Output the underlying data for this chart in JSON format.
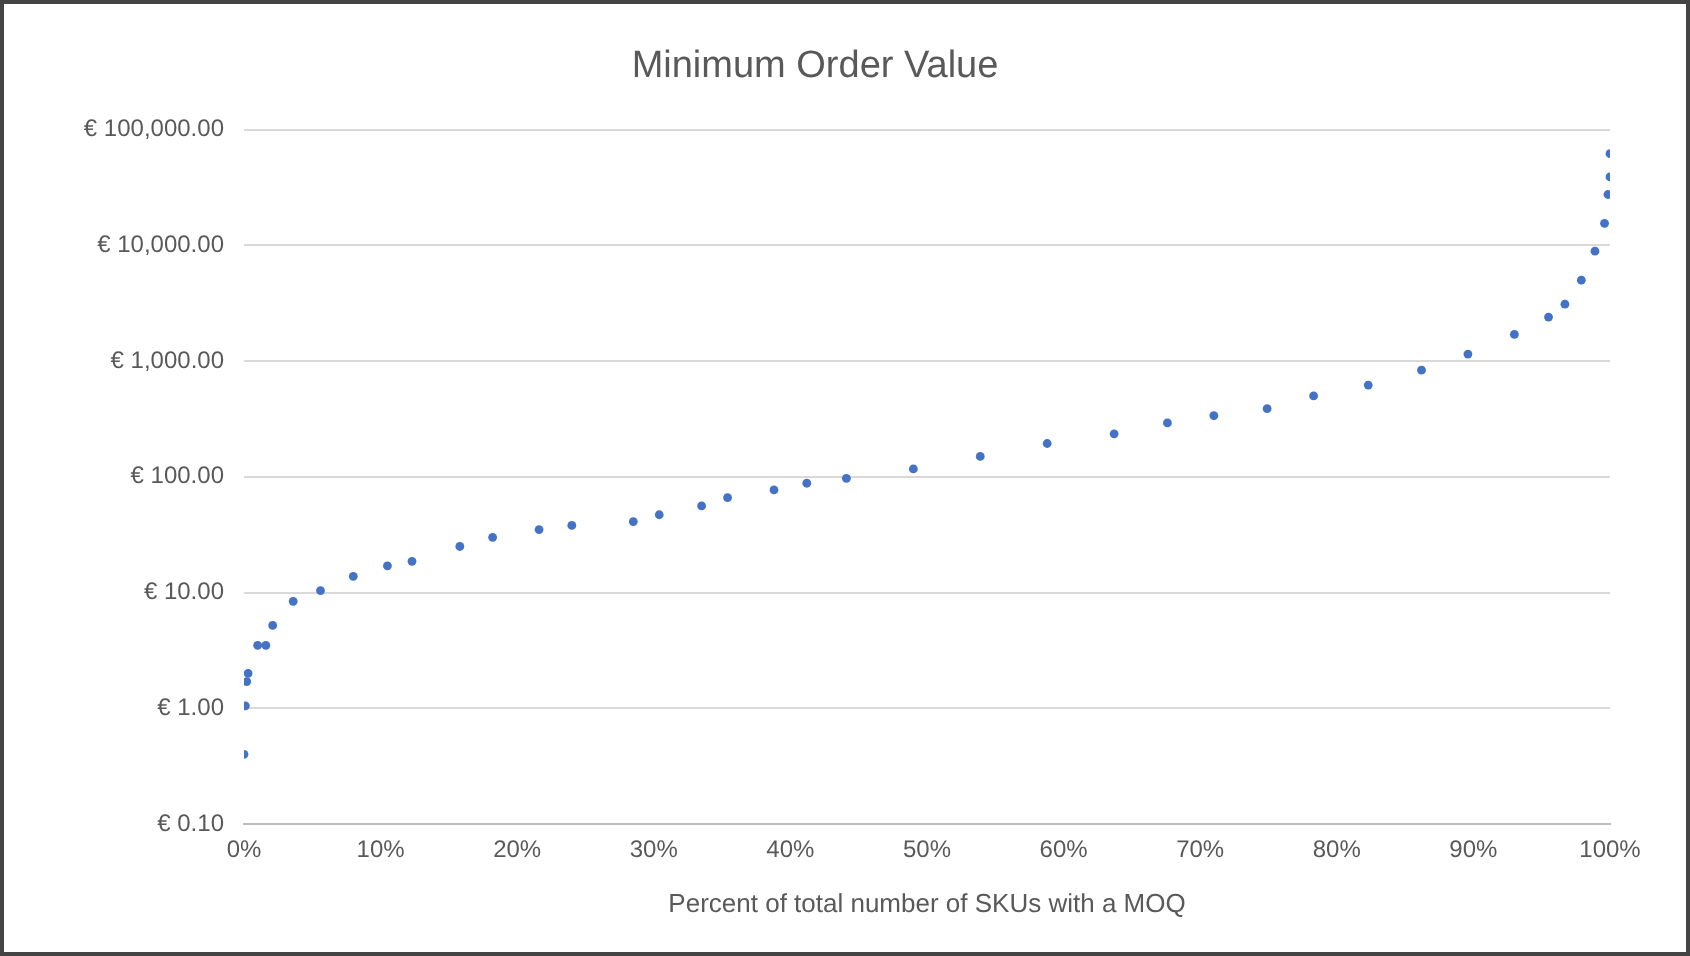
{
  "chart_data": {
    "type": "scatter",
    "title": "Minimum Order Value",
    "xlabel": "Percent of total number of SKUs with a MOQ",
    "x": [
      0,
      0.1,
      0.2,
      0.3,
      1.0,
      1.6,
      2.1,
      3.6,
      5.6,
      8.0,
      10.5,
      12.3,
      15.8,
      18.2,
      21.6,
      24,
      28.5,
      30.4,
      33.5,
      35.4,
      38.8,
      41.2,
      44.1,
      49.0,
      53.9,
      58.8,
      63.7,
      67.6,
      71.0,
      74.9,
      78.3,
      82.3,
      86.2,
      89.6,
      93.0,
      95.5,
      96.7,
      97.9,
      98.9,
      99.6,
      99.85,
      100,
      100
    ],
    "values": [
      0.4,
      1.05,
      1.7,
      2.0,
      3.5,
      3.5,
      5.2,
      8.4,
      10.4,
      13.8,
      17,
      18.6,
      25,
      30,
      35,
      38,
      41,
      47,
      56,
      66,
      77,
      88,
      97,
      117,
      150,
      194,
      235,
      292,
      337,
      388,
      500,
      620,
      835,
      1150,
      1700,
      2400,
      3100,
      5000,
      8900,
      15500,
      27500,
      39000,
      62000
    ],
    "color": "#4472c4",
    "marker": "circle",
    "log": "y",
    "grid": "y",
    "xlim": [
      0,
      100
    ],
    "xticks": [
      {
        "value": 0,
        "label": "0%"
      },
      {
        "value": 10,
        "label": "10%"
      },
      {
        "value": 20,
        "label": "20%"
      },
      {
        "value": 30,
        "label": "30%"
      },
      {
        "value": 40,
        "label": "40%"
      },
      {
        "value": 50,
        "label": "50%"
      },
      {
        "value": 60,
        "label": "60%"
      },
      {
        "value": 70,
        "label": "70%"
      },
      {
        "value": 80,
        "label": "80%"
      },
      {
        "value": 90,
        "label": "90%"
      },
      {
        "value": 100,
        "label": "100%"
      }
    ],
    "ylim": [
      0.1,
      100000
    ],
    "yticks": [
      {
        "value": 0.1,
        "label": "€ 0.10"
      },
      {
        "value": 1,
        "label": "€ 1.00"
      },
      {
        "value": 10,
        "label": "€ 10.00"
      },
      {
        "value": 100,
        "label": "€ 100.00"
      },
      {
        "value": 1000,
        "label": "€ 1,000.00"
      },
      {
        "value": 10000,
        "label": "€ 10,000.00"
      },
      {
        "value": 100000,
        "label": "€ 100,000.00"
      }
    ]
  }
}
